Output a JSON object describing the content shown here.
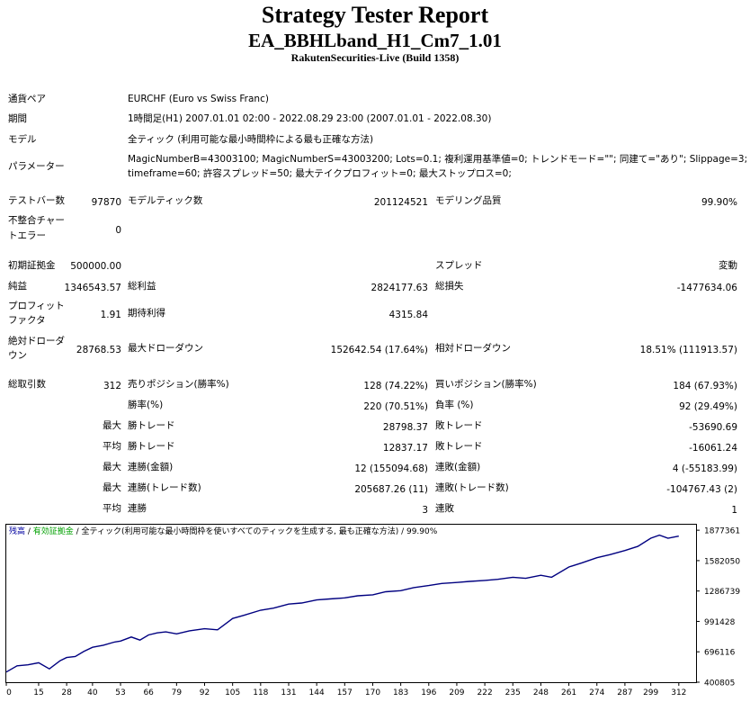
{
  "header": {
    "title": "Strategy Tester Report",
    "subtitle": "EA_BBHLband_H1_Cm7_1.01",
    "server": "RakutenSecurities-Live (Build 1358)"
  },
  "info": {
    "symbol_label": "通貨ペア",
    "symbol_value": "EURCHF (Euro vs Swiss Franc)",
    "period_label": "期間",
    "period_value": "1時間足(H1) 2007.01.01 02:00 - 2022.08.29 23:00 (2007.01.01 - 2022.08.30)",
    "model_label": "モデル",
    "model_value": "全ティック (利用可能な最小時間枠による最も正確な方法)",
    "params_label": "パラメーター",
    "params_line1": "MagicNumberB=43003100; MagicNumberS=43003200; Lots=0.1; 複利運用基準値=0; トレンドモード=\"\"; 同建て=\"あり\"; Slippage=3;",
    "params_line2": "timeframe=60; 許容スプレッド=50; 最大テイクプロフィット=0; 最大ストップロス=0;"
  },
  "stats": {
    "bars_label": "テストバー数",
    "bars_value": "97870",
    "ticks_label": "モデルティック数",
    "ticks_value": "201124521",
    "quality_label": "モデリング品質",
    "quality_value": "99.90%",
    "mismatch_label1": "不整合チャー",
    "mismatch_label2": "トエラー",
    "mismatch_value": "0",
    "deposit_label": "初期証拠金",
    "deposit_value": "500000.00",
    "spread_label": "スプレッド",
    "spread_value": "変動",
    "netprofit_label": "純益",
    "netprofit_value": "1346543.57",
    "grossprofit_label": "総利益",
    "grossprofit_value": "2824177.63",
    "grossloss_label": "総損失",
    "grossloss_value": "-1477634.06",
    "pf_label1": "プロフィット",
    "pf_label2": "ファクタ",
    "pf_value": "1.91",
    "expected_label": "期待利得",
    "expected_value": "4315.84",
    "absdd_label1": "絶対ドローダ",
    "absdd_label2": "ウン",
    "absdd_value": "28768.53",
    "maxdd_label": "最大ドローダウン",
    "maxdd_value": "152642.54 (17.64%)",
    "reldd_label": "相対ドローダウン",
    "reldd_value": "18.51% (111913.57)",
    "trades_label": "総取引数",
    "trades_value": "312",
    "short_label": "売りポジション(勝率%)",
    "short_value": "128 (74.22%)",
    "long_label": "買いポジション(勝率%)",
    "long_value": "184 (67.93%)",
    "win_label": "勝率(%)",
    "win_value": "220 (70.51%)",
    "loss_label": "負率 (%)",
    "loss_value": "92 (29.49%)",
    "largest_label": "最大",
    "largest_win_label": "勝トレード",
    "largest_win_value": "28798.37",
    "largest_loss_label": "敗トレード",
    "largest_loss_value": "-53690.69",
    "average_label": "平均",
    "avg_win_label": "勝トレード",
    "avg_win_value": "12837.17",
    "avg_loss_label": "敗トレード",
    "avg_loss_value": "-16061.24",
    "max1_label": "最大",
    "cw_money_label": "連勝(金額)",
    "cw_money_value": "12 (155094.68)",
    "cl_money_label": "連敗(金額)",
    "cl_money_value": "4 (-55183.99)",
    "max2_label": "最大",
    "cw_trades_label": "連勝(トレード数)",
    "cw_trades_value": "205687.26 (11)",
    "cl_trades_label": "連敗(トレード数)",
    "cl_trades_value": "-104767.43 (2)",
    "avg2_label": "平均",
    "avg_cw_label": "連勝",
    "avg_cw_value": "3",
    "avg_cl_label": "連敗",
    "avg_cl_value": "1"
  },
  "chart_data": {
    "type": "line",
    "legend": [
      {
        "text": "残高",
        "color": "#0000a0"
      },
      {
        "text": " / ",
        "color": "#000000"
      },
      {
        "text": "有効証拠金",
        "color": "#00a000"
      },
      {
        "text": " / 全ティック(利用可能な最小時間枠を使いすべてのティックを生成する, 最も正確な方法) / 99.90%",
        "color": "#000000"
      }
    ],
    "line_color": "#000080",
    "ylim": [
      400805,
      1931000
    ],
    "xlim": [
      0,
      320
    ],
    "yticks": [
      "1877361",
      "1582050",
      "1286739",
      "991428",
      "696116",
      "400805"
    ],
    "ytick_values": [
      1877361,
      1582050,
      1286739,
      991428,
      696116,
      400805
    ],
    "xticks": [
      "0",
      "15",
      "28",
      "40",
      "53",
      "66",
      "79",
      "92",
      "105",
      "118",
      "131",
      "144",
      "157",
      "170",
      "183",
      "196",
      "209",
      "222",
      "235",
      "248",
      "261",
      "274",
      "287",
      "299",
      "312"
    ],
    "x": [
      0,
      5,
      10,
      15,
      20,
      25,
      28,
      32,
      36,
      40,
      45,
      50,
      53,
      58,
      62,
      66,
      70,
      74,
      79,
      85,
      92,
      98,
      105,
      110,
      118,
      124,
      131,
      137,
      144,
      150,
      157,
      163,
      170,
      176,
      183,
      189,
      196,
      202,
      209,
      215,
      222,
      228,
      235,
      241,
      248,
      253,
      261,
      267,
      274,
      280,
      287,
      293,
      299,
      303,
      307,
      312
    ],
    "balance": [
      500000,
      560000,
      570000,
      590000,
      530000,
      610000,
      640000,
      650000,
      700000,
      740000,
      760000,
      790000,
      800000,
      840000,
      810000,
      860000,
      880000,
      890000,
      870000,
      900000,
      920000,
      910000,
      1020000,
      1050000,
      1100000,
      1120000,
      1160000,
      1170000,
      1200000,
      1210000,
      1220000,
      1240000,
      1250000,
      1280000,
      1290000,
      1320000,
      1340000,
      1360000,
      1370000,
      1380000,
      1390000,
      1400000,
      1420000,
      1410000,
      1440000,
      1420000,
      1520000,
      1560000,
      1610000,
      1640000,
      1680000,
      1720000,
      1800000,
      1830000,
      1800000,
      1820000
    ]
  }
}
